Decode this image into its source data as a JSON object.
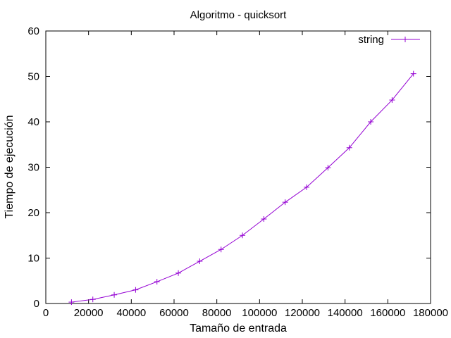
{
  "chart_data": {
    "type": "line",
    "title": "Algoritmo - quicksort",
    "xlabel": "Tamaño de entrada",
    "ylabel": "Tiempo de ejecución",
    "xlim": [
      0,
      180000
    ],
    "ylim": [
      0,
      60
    ],
    "xticks": [
      0,
      20000,
      40000,
      60000,
      80000,
      100000,
      120000,
      140000,
      160000,
      180000
    ],
    "yticks": [
      0,
      10,
      20,
      30,
      40,
      50,
      60
    ],
    "xtick_labels": [
      "0",
      "20000",
      "40000",
      "60000",
      "80000",
      "100000",
      "120000",
      "140000",
      "160000",
      "180000"
    ],
    "ytick_labels": [
      "0",
      "10",
      "20",
      "30",
      "40",
      "50",
      "60"
    ],
    "grid": false,
    "legend_position": "top-right",
    "series": [
      {
        "name": "string",
        "color": "#9400d3",
        "marker": "plus",
        "x": [
          12000,
          22000,
          32000,
          42000,
          52000,
          62000,
          72000,
          82000,
          92000,
          102000,
          112000,
          122000,
          132000,
          142000,
          152000,
          162000,
          172000
        ],
        "y": [
          0.3,
          0.9,
          1.9,
          3.0,
          4.8,
          6.7,
          9.3,
          11.9,
          15.0,
          18.6,
          22.3,
          25.6,
          29.9,
          34.3,
          40.0,
          44.8,
          50.6
        ]
      }
    ]
  }
}
